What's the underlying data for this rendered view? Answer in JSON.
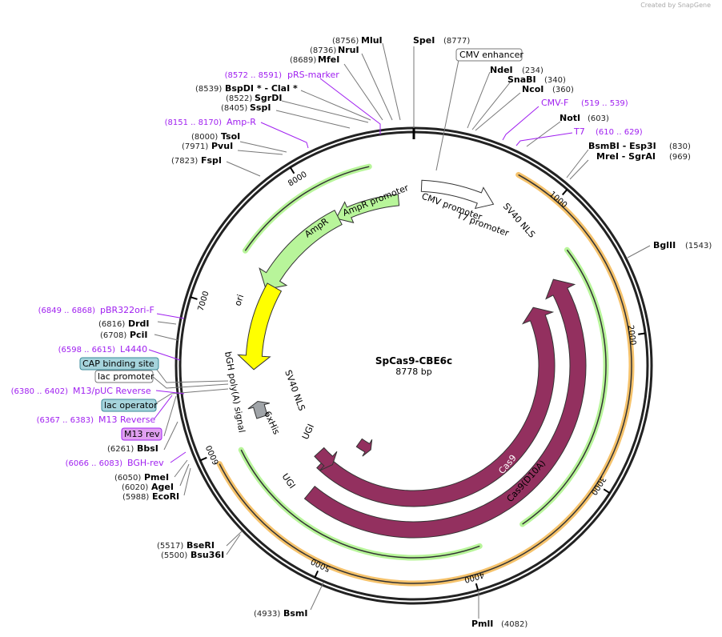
{
  "credit": "Created by SnapGene",
  "plasmid": {
    "name": "SpCas9-CBE6c",
    "length_label": "8778 bp",
    "length": 8778
  },
  "ticks": [
    "1000",
    "2000",
    "3000",
    "4000",
    "5000",
    "6000",
    "7000",
    "8000"
  ],
  "enzymes": [
    {
      "name": "MluI",
      "pos": "(8756)"
    },
    {
      "name": "NruI",
      "pos": "(8736)"
    },
    {
      "name": "MfeI",
      "pos": "(8689)"
    },
    {
      "name": "BspDI * - ClaI *",
      "pos": "(8539)"
    },
    {
      "name": "SgrDI",
      "pos": "(8522)"
    },
    {
      "name": "SspI",
      "pos": "(8405)"
    },
    {
      "name": "TsoI",
      "pos": "(8000)"
    },
    {
      "name": "PvuI",
      "pos": "(7971)"
    },
    {
      "name": "FspI",
      "pos": "(7823)"
    },
    {
      "name": "SpeI",
      "pos": "(8777)"
    },
    {
      "name": "NdeI",
      "pos": "(234)"
    },
    {
      "name": "SnaBI",
      "pos": "(340)"
    },
    {
      "name": "NcoI",
      "pos": "(360)"
    },
    {
      "name": "NotI",
      "pos": "(603)"
    },
    {
      "name": "BsmBI - Esp3I",
      "pos": "(830)"
    },
    {
      "name": "MreI - SgrAI",
      "pos": "(969)"
    },
    {
      "name": "BglII",
      "pos": "(1543)"
    },
    {
      "name": "PmlI",
      "pos": "(4082)"
    },
    {
      "name": "BsmI",
      "pos": "(4933)"
    },
    {
      "name": "BseRI",
      "pos": "(5517)"
    },
    {
      "name": "Bsu36I",
      "pos": "(5500)"
    },
    {
      "name": "EcoRI",
      "pos": "(5988)"
    },
    {
      "name": "AgeI",
      "pos": "(6020)"
    },
    {
      "name": "PmeI",
      "pos": "(6050)"
    },
    {
      "name": "BbsI",
      "pos": "(6261)"
    },
    {
      "name": "PciI",
      "pos": "(6708)"
    },
    {
      "name": "DrdI",
      "pos": "(6816)"
    }
  ],
  "primers": [
    {
      "name": "pRS-marker",
      "pos": "(8572 .. 8591)"
    },
    {
      "name": "Amp-R",
      "pos": "(8151 .. 8170)"
    },
    {
      "name": "CMV-F",
      "pos": "(519 .. 539)"
    },
    {
      "name": "T7",
      "pos": "(610 .. 629)"
    },
    {
      "name": "pBR322ori-F",
      "pos": "(6849 .. 6868)"
    },
    {
      "name": "L4440",
      "pos": "(6598 .. 6615)"
    },
    {
      "name": "M13/pUC Reverse",
      "pos": "(6380 .. 6402)"
    },
    {
      "name": "M13 Reverse",
      "pos": "(6367 .. 6383)"
    },
    {
      "name": "BGH-rev",
      "pos": "(6066 .. 6083)"
    }
  ],
  "boxed_features": [
    "CMV enhancer",
    "CAP binding site",
    "lac promoter",
    "lac operator",
    "M13 rev"
  ],
  "features": {
    "cmv_promoter": "CMV promoter",
    "t7_promoter": "T7 promoter",
    "sv40_nls_top": "SV40 NLS",
    "ampr": "AmpR",
    "ampr_promoter": "AmpR promoter",
    "ori": "ori",
    "cas9": "Cas9",
    "cas9_d10a": "Cas9(D10A)",
    "bgh": "bGH poly(A) signal",
    "sv40_nls": "SV40 NLS",
    "sixhis": "6xHis",
    "ugi1": "UGI",
    "ugi2": "UGI"
  },
  "colors": {
    "cas9": "#93305f",
    "orange": "#f5c26b",
    "green": "#b8f59a",
    "yellow": "#ffff00",
    "primer": "#a020f0",
    "cyan": "#a6d4dc"
  }
}
